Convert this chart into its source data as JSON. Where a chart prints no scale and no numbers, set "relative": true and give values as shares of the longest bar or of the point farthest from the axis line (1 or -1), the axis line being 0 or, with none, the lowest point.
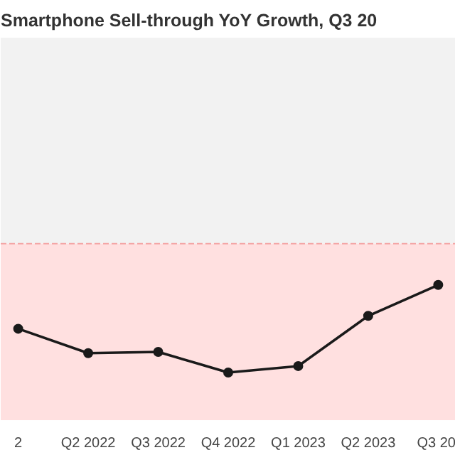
{
  "chart_data": {
    "type": "line",
    "title": "Smartphone Sell-through YoY Growth, Q3 20",
    "relative": true,
    "categories": [
      "2",
      "Q2 2022",
      "Q3 2022",
      "Q4 2022",
      "Q1 2023",
      "Q2 2023",
      "Q3 20"
    ],
    "series": [
      {
        "color": "#1a1a1a",
        "values": [
          -0.66,
          -0.85,
          -0.84,
          -1,
          -0.95,
          -0.56,
          -0.32
        ]
      }
    ],
    "marker": "circle",
    "line_style": "solid",
    "ref_lines": [
      {
        "axis": "y",
        "value": 0,
        "color": "#f4a6a6",
        "line_style": "dashed"
      }
    ],
    "bands": [
      {
        "axis": "y",
        "from": 0,
        "to": 1.6,
        "color": "#f2f2f2"
      },
      {
        "axis": "y",
        "from": -1.37,
        "to": 0,
        "color": "#ffe0e0"
      }
    ]
  }
}
